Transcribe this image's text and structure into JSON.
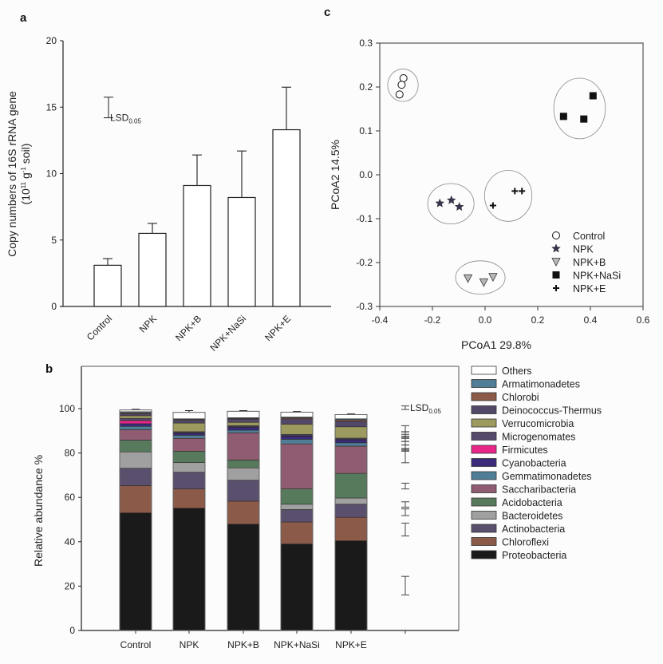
{
  "figure": {
    "panel_labels": [
      "a",
      "b",
      "c"
    ]
  },
  "chart_data": [
    {
      "id": "a",
      "type": "bar",
      "panel_label": "a",
      "title": "",
      "ylabel_line1": "Copy numbers of 16S rRNA gene",
      "ylabel_line2_parts": [
        "(10",
        "11",
        " g",
        "-1",
        " soil)"
      ],
      "xlabel": "",
      "categories": [
        "Control",
        "NPK",
        "NPK+B",
        "NPK+NaSi",
        "NPK+E"
      ],
      "values": [
        3.1,
        5.5,
        9.1,
        8.2,
        13.3
      ],
      "error_upper": [
        0.5,
        0.75,
        2.3,
        3.5,
        3.2
      ],
      "ylim": [
        0,
        20
      ],
      "yticks": [
        0,
        5,
        10,
        15,
        20
      ],
      "lsd": {
        "label": "LSD",
        "subscript": "0.05",
        "low": 14.2,
        "high": 15.75
      },
      "grid": false
    },
    {
      "id": "b",
      "type": "bar",
      "stacked": true,
      "panel_label": "b",
      "title": "",
      "ylabel": "Relative abundance %",
      "xlabel": "",
      "categories": [
        "Control",
        "NPK",
        "NPK+B",
        "NPK+NaSi",
        "NPK+E"
      ],
      "ylim": [
        0,
        120
      ],
      "yticks": [
        0,
        20,
        40,
        60,
        80,
        100
      ],
      "grid": false,
      "legend_position": "right",
      "series": [
        {
          "name": "Proteobacteria",
          "color": "#1a1a1a",
          "values": [
            53.0,
            55.1,
            47.9,
            39.0,
            40.4
          ],
          "err": [
            0.8,
            2.2,
            4.0,
            2.5,
            0.4
          ]
        },
        {
          "name": "Chloroflexi",
          "color": "#8c5a48",
          "values": [
            12.3,
            8.7,
            10.4,
            9.9,
            10.6
          ],
          "err": [
            1.2,
            3.0,
            1.0,
            1.0,
            1.5
          ]
        },
        {
          "name": "Actinobacteria",
          "color": "#5a506e",
          "values": [
            7.8,
            7.5,
            9.4,
            5.6,
            5.9
          ],
          "err": [
            0.7,
            1.5,
            0.4,
            0.8,
            1.0
          ]
        },
        {
          "name": "Bacteroidetes",
          "color": "#a0a0a0",
          "values": [
            7.4,
            4.4,
            5.6,
            2.4,
            2.8
          ],
          "err": [
            0.4,
            1.3,
            0.3,
            1.0,
            0.3
          ]
        },
        {
          "name": "Acidobacteria",
          "color": "#587a5c",
          "values": [
            5.3,
            5.1,
            3.5,
            6.9,
            11.1
          ],
          "err": [
            0.6,
            0.4,
            0.9,
            0.4,
            0.3
          ]
        },
        {
          "name": "Saccharibacteria",
          "color": "#8f5c72",
          "values": [
            4.7,
            5.8,
            12.3,
            20.3,
            12.3
          ],
          "err": [
            0.2,
            0.2,
            0.3,
            1.0,
            0.4
          ]
        },
        {
          "name": "Gemmatimonadetes",
          "color": "#4f7e96",
          "values": [
            1.5,
            1.4,
            1.2,
            2.1,
            1.5
          ],
          "err": [
            0.3,
            0.4,
            0.5,
            0.4,
            0.2
          ]
        },
        {
          "name": "Cyanobacteria",
          "color": "#3c2a7a",
          "values": [
            1.2,
            0.9,
            1.3,
            1.4,
            1.3
          ],
          "err": [
            0.2,
            0.3,
            0.3,
            0.5,
            0.3
          ]
        },
        {
          "name": "Firmicutes",
          "color": "#e8268a",
          "values": [
            1.4,
            0.2,
            0.2,
            0.2,
            0.2
          ],
          "err": [
            0.3,
            0.1,
            0.1,
            0.1,
            0.1
          ]
        },
        {
          "name": "Microgenomates",
          "color": "#564a6c",
          "values": [
            1.0,
            0.5,
            0.5,
            0.6,
            0.6
          ],
          "err": [
            0.2,
            0.2,
            0.2,
            0.2,
            0.2
          ]
        },
        {
          "name": "Verrucomicrobia",
          "color": "#9c9a5e",
          "values": [
            1.2,
            3.9,
            1.5,
            4.6,
            5.1
          ],
          "err": [
            0.2,
            0.3,
            0.4,
            0.3,
            0.3
          ]
        },
        {
          "name": "Deinococcus-Thermus",
          "color": "#524868",
          "values": [
            0.8,
            1.2,
            1.5,
            2.4,
            2.5
          ],
          "err": [
            0.2,
            0.3,
            0.4,
            0.4,
            0.3
          ]
        },
        {
          "name": "Chlorobi",
          "color": "#8c5a48",
          "values": [
            0.5,
            0.4,
            0.3,
            0.5,
            0.7
          ],
          "err": [
            0.2,
            0.2,
            0.2,
            0.2,
            0.3
          ]
        },
        {
          "name": "Armatimonadetes",
          "color": "#4f7e96",
          "values": [
            0.5,
            0.3,
            0.3,
            0.3,
            0.4
          ],
          "err": [
            0.2,
            0.2,
            0.2,
            0.2,
            0.2
          ]
        },
        {
          "name": "Others",
          "color": "#ffffff",
          "values": [
            0.8,
            2.9,
            2.9,
            2.2,
            1.9
          ],
          "err": [
            0.3,
            0.8,
            0.3,
            0.3,
            0.3
          ]
        }
      ],
      "legend_order": [
        "Others",
        "Armatimonadetes",
        "Chlorobi",
        "Deinococcus-Thermus",
        "Verrucomicrobia",
        "Microgenomates",
        "Firmicutes",
        "Cyanobacteria",
        "Gemmatimonadetes",
        "Saccharibacteria",
        "Acidobacteria",
        "Bacteroidetes",
        "Actinobacteria",
        "Chloroflexi",
        "Proteobacteria"
      ],
      "lsd": {
        "label": "LSD",
        "subscript": "0.05",
        "bars": [
          [
            99.6,
            101.2
          ],
          [
            89.5,
            92.3
          ],
          [
            87.6,
            89.6
          ],
          [
            86.6,
            88.4
          ],
          [
            85.2,
            87.0
          ],
          [
            83.6,
            85.2
          ],
          [
            81.6,
            83.6
          ],
          [
            80.8,
            82.0
          ],
          [
            75.6,
            81.0
          ],
          [
            63.8,
            66.4
          ],
          [
            55.6,
            58.0
          ],
          [
            51.8,
            54.8
          ],
          [
            42.6,
            48.4
          ],
          [
            16.0,
            24.4
          ]
        ]
      }
    },
    {
      "id": "c",
      "type": "scatter",
      "panel_label": "c",
      "title": "",
      "xlabel": "PCoA1  29.8%",
      "ylabel": "PCoA2 14.5%",
      "xlim": [
        -0.4,
        0.6
      ],
      "ylim": [
        -0.3,
        0.3
      ],
      "xticks": [
        -0.4,
        -0.2,
        0.0,
        0.2,
        0.4,
        0.6
      ],
      "xtick_labels": [
        "-0.4",
        "-0.2",
        "0.0",
        "0.2",
        "0.4",
        "0.6"
      ],
      "yticks": [
        -0.3,
        -0.2,
        -0.1,
        0.0,
        0.1,
        0.2,
        0.3
      ],
      "ytick_labels": [
        "-0.3",
        "-0.2",
        "-0.1",
        "0.0",
        "0.1",
        "0.2",
        "0.3"
      ],
      "grid": false,
      "legend_position": "bottom-right",
      "series": [
        {
          "name": "Control",
          "marker": "open-circle",
          "color": "#111111",
          "points": [
            [
              -0.31,
              0.22
            ],
            [
              -0.317,
              0.205
            ],
            [
              -0.325,
              0.183
            ]
          ],
          "ellipse": {
            "cx": -0.312,
            "cy": 0.204,
            "rx": 0.058,
            "ry": 0.037
          }
        },
        {
          "name": "NPK",
          "marker": "star",
          "color": "#3a3550",
          "points": [
            [
              -0.172,
              -0.065
            ],
            [
              -0.128,
              -0.058
            ],
            [
              -0.098,
              -0.073
            ]
          ],
          "ellipse": {
            "cx": -0.13,
            "cy": -0.066,
            "rx": 0.088,
            "ry": 0.046
          }
        },
        {
          "name": "NPK+B",
          "marker": "down-triangle",
          "color": "#b8b8b8",
          "points": [
            [
              -0.065,
              -0.236
            ],
            [
              -0.005,
              -0.245
            ],
            [
              0.03,
              -0.233
            ]
          ],
          "ellipse": {
            "cx": -0.018,
            "cy": -0.234,
            "rx": 0.094,
            "ry": 0.038
          }
        },
        {
          "name": "NPK+NaSi",
          "marker": "filled-square",
          "color": "#111111",
          "points": [
            [
              0.298,
              0.133
            ],
            [
              0.375,
              0.127
            ],
            [
              0.41,
              0.18
            ]
          ],
          "ellipse": {
            "cx": 0.359,
            "cy": 0.151,
            "rx": 0.098,
            "ry": 0.069
          }
        },
        {
          "name": "NPK+E",
          "marker": "plus",
          "color": "#111111",
          "points": [
            [
              0.03,
              -0.07
            ],
            [
              0.113,
              -0.037
            ],
            [
              0.14,
              -0.037
            ]
          ],
          "ellipse": {
            "cx": 0.088,
            "cy": -0.048,
            "rx": 0.09,
            "ry": 0.058
          }
        }
      ]
    }
  ]
}
